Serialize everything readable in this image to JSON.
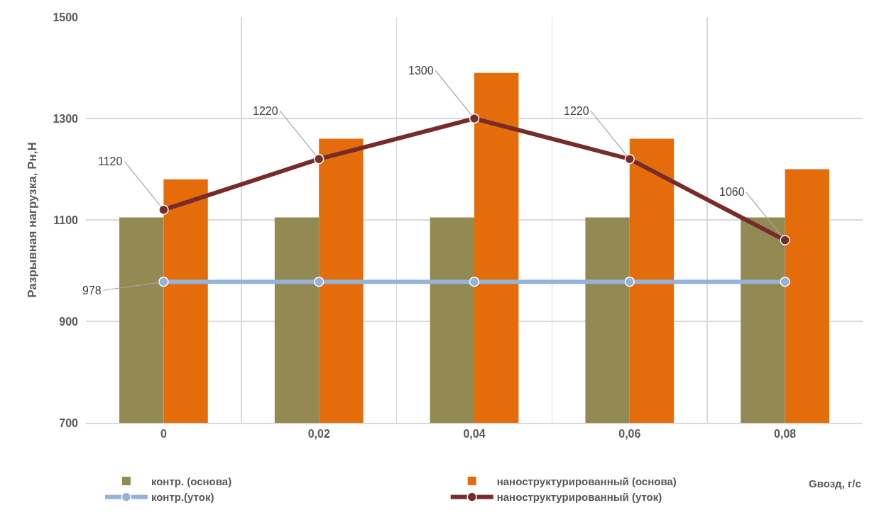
{
  "chart_data": {
    "type": "bar",
    "ylabel": "Разрывная нагрузка, Рн,Н",
    "xlabel": "Gвозд, г/с",
    "categories": [
      "0",
      "0,02",
      "0,04",
      "0,06",
      "0,08"
    ],
    "series": [
      {
        "name": "контр. (основа)",
        "color": "#938953",
        "values": [
          1105,
          1105,
          1105,
          1105,
          1105
        ]
      },
      {
        "name": "наноструктурированный (основа)",
        "color": "#e46c0a",
        "values": [
          1180,
          1260,
          1390,
          1260,
          1200
        ]
      },
      {
        "name": "контр.(уток)",
        "type": "line",
        "color": "#95b3d7",
        "values": [
          978,
          978,
          978,
          978,
          978
        ],
        "value_labels": [
          "978",
          null,
          null,
          null,
          null
        ]
      },
      {
        "name": "наноструктурированный (уток)",
        "type": "line",
        "color": "#772c2a",
        "values": [
          1120,
          1220,
          1300,
          1220,
          1060
        ],
        "value_labels": [
          "1120",
          "1220",
          "1300",
          "1220",
          "1060"
        ]
      }
    ],
    "ylim": [
      700,
      1500
    ],
    "yticks": [
      700,
      900,
      1100,
      1300,
      1500
    ],
    "grid": true,
    "legend": "bottom",
    "marker": "circle"
  }
}
